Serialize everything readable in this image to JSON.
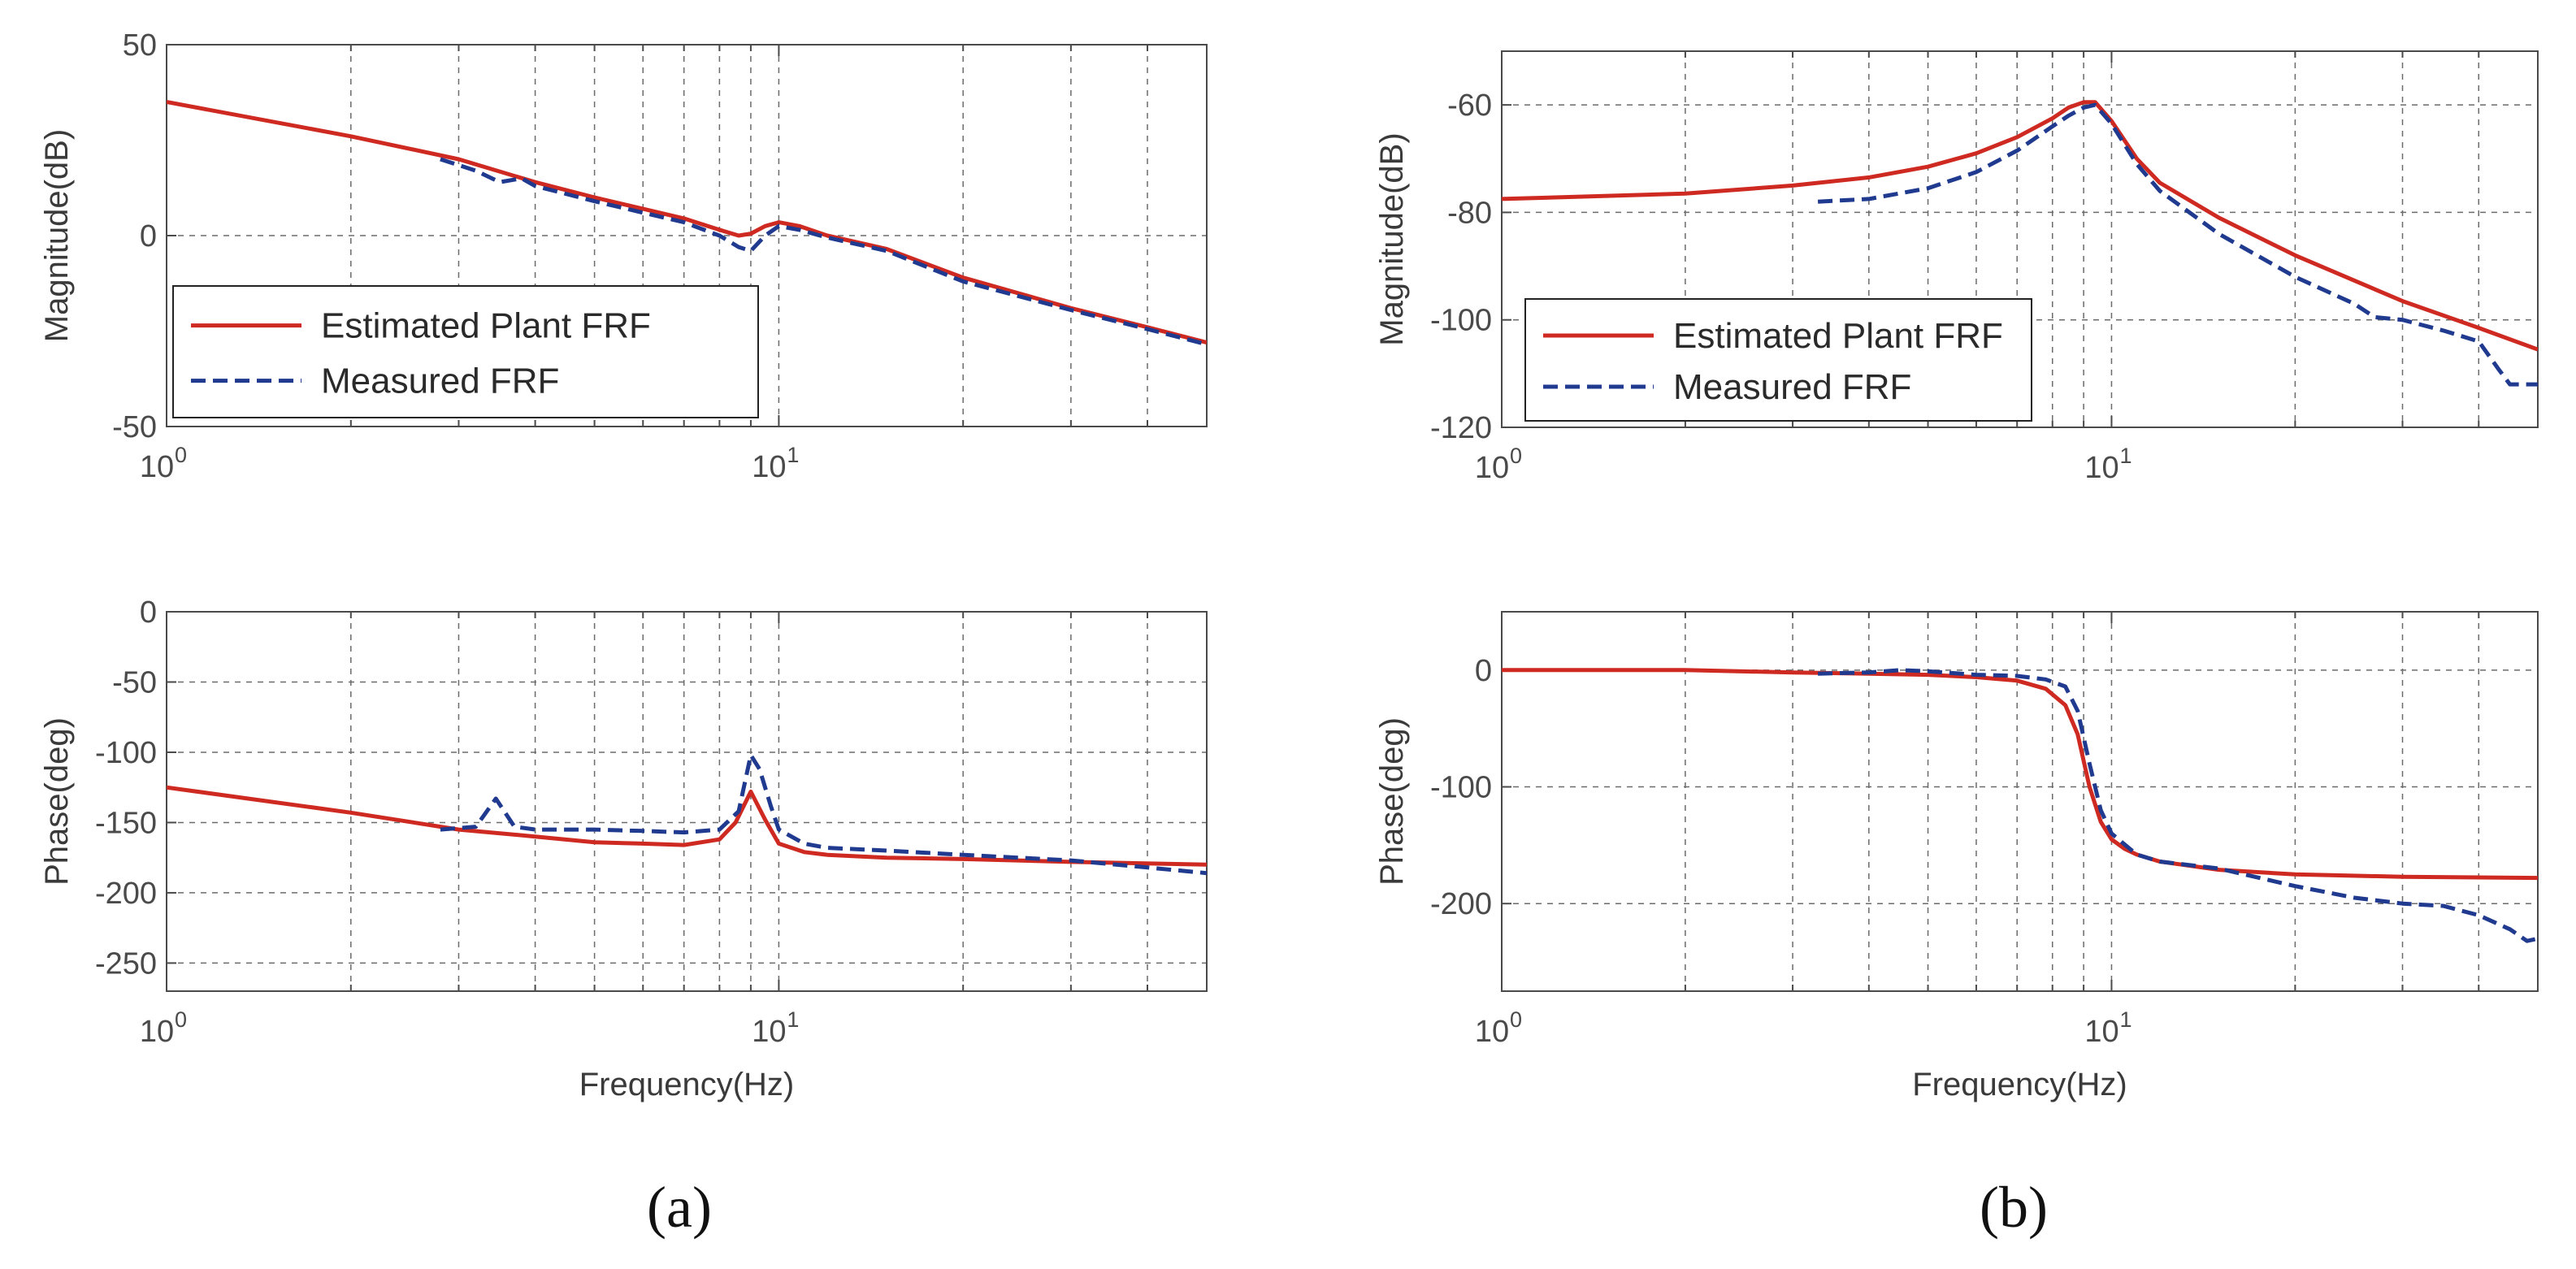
{
  "chart_data": [
    {
      "id": "a-magnitude",
      "type": "line",
      "xscale": "log",
      "xlim": [
        1,
        50
      ],
      "ylim": [
        -50,
        50
      ],
      "yticks": [
        -50,
        0,
        50
      ],
      "ylabel": "Magnitude(dB)",
      "xlabel": "",
      "grid": true,
      "legend": {
        "placement": "bottom-left",
        "entries": [
          "Estimated Plant FRF",
          "Measured FRF"
        ]
      },
      "series": [
        {
          "name": "Estimated Plant FRF",
          "style": "solid",
          "color": "#cf2a22",
          "x": [
            1,
            2,
            3,
            4,
            5,
            6,
            7,
            8,
            8.6,
            9,
            9.5,
            10,
            10.8,
            12,
            15,
            20,
            30,
            40,
            50
          ],
          "y": [
            35,
            26,
            20,
            14,
            10,
            7,
            4.5,
            1.5,
            0,
            0.5,
            2.5,
            3.5,
            2.5,
            0,
            -3.5,
            -11,
            -19,
            -24,
            -28
          ]
        },
        {
          "name": "Measured FRF",
          "style": "dashed",
          "color": "#1f3a8f",
          "x": [
            2.8,
            3.2,
            3.5,
            3.8,
            4,
            5,
            6,
            7,
            8,
            8.6,
            9,
            9.5,
            10,
            10.8,
            12,
            15,
            20,
            30,
            40,
            50
          ],
          "y": [
            20,
            17,
            14,
            15,
            13,
            9,
            6,
            3.5,
            0,
            -3,
            -4,
            0,
            2.5,
            1.5,
            -0.5,
            -4,
            -12,
            -19.5,
            -24.5,
            -28.5
          ]
        }
      ]
    },
    {
      "id": "a-phase",
      "type": "line",
      "xscale": "log",
      "xlim": [
        1,
        50
      ],
      "ylim": [
        -270,
        0
      ],
      "yticks": [
        -250,
        -200,
        -150,
        -100,
        -50,
        0
      ],
      "ylabel": "Phase(deg)",
      "xlabel": "Frequency(Hz)",
      "grid": true,
      "series": [
        {
          "name": "Estimated Plant FRF",
          "style": "solid",
          "color": "#cf2a22",
          "x": [
            1,
            2,
            3,
            4,
            5,
            6,
            7,
            8,
            8.5,
            9,
            9.5,
            10,
            11,
            12,
            15,
            20,
            30,
            50
          ],
          "y": [
            -125,
            -143,
            -155,
            -160,
            -164,
            -165,
            -166,
            -162,
            -150,
            -128,
            -148,
            -165,
            -171,
            -173,
            -175,
            -176,
            -178,
            -180
          ]
        },
        {
          "name": "Measured FRF",
          "style": "dashed",
          "color": "#1f3a8f",
          "x": [
            2.8,
            3.2,
            3.45,
            3.7,
            4,
            5,
            6,
            7,
            8,
            8.6,
            9,
            9.3,
            9.7,
            10,
            11,
            12,
            15,
            20,
            30,
            40,
            50
          ],
          "y": [
            -155,
            -153,
            -133,
            -153,
            -155,
            -155,
            -156,
            -157,
            -155,
            -142,
            -102,
            -112,
            -138,
            -155,
            -165,
            -168,
            -170,
            -173,
            -177,
            -182,
            -186
          ]
        }
      ]
    },
    {
      "id": "b-magnitude",
      "type": "line",
      "xscale": "log",
      "xlim": [
        1,
        50
      ],
      "ylim": [
        -120,
        -50
      ],
      "yticks": [
        -120,
        -100,
        -80,
        -60
      ],
      "ylabel": "Magnitude(dB)",
      "xlabel": "",
      "grid": true,
      "legend": {
        "placement": "bottom-left",
        "entries": [
          "Estimated Plant FRF",
          "Measured FRF"
        ]
      },
      "series": [
        {
          "name": "Estimated Plant FRF",
          "style": "solid",
          "color": "#cf2a22",
          "x": [
            1,
            2,
            3,
            4,
            5,
            6,
            7,
            8,
            8.5,
            9,
            9.4,
            10,
            11,
            12,
            15,
            20,
            30,
            40,
            50
          ],
          "y": [
            -77.5,
            -76.5,
            -75,
            -73.5,
            -71.5,
            -69,
            -66,
            -62.5,
            -60.5,
            -59.5,
            -59.5,
            -63,
            -70,
            -74.5,
            -81,
            -88,
            -96.5,
            -101.5,
            -105.5
          ]
        },
        {
          "name": "Measured FRF",
          "style": "dashed",
          "color": "#1f3a8f",
          "x": [
            3.3,
            4,
            5,
            6,
            7,
            8,
            8.5,
            9,
            9.4,
            10,
            11,
            12,
            15,
            20,
            25,
            27,
            30,
            35,
            40,
            43,
            45,
            50
          ],
          "y": [
            -78,
            -77.5,
            -75.5,
            -72.5,
            -68.5,
            -64,
            -62,
            -60.5,
            -60,
            -63.5,
            -71,
            -76,
            -84,
            -92,
            -97,
            -99.5,
            -100,
            -102,
            -104,
            -109,
            -112,
            -112
          ]
        }
      ]
    },
    {
      "id": "b-phase",
      "type": "line",
      "xscale": "log",
      "xlim": [
        1,
        50
      ],
      "ylim": [
        -275,
        50
      ],
      "yticks": [
        -200,
        -100,
        0
      ],
      "ylabel": "Phase(deg)",
      "xlabel": "Frequency(Hz)",
      "grid": true,
      "series": [
        {
          "name": "Estimated Plant FRF",
          "style": "solid",
          "color": "#cf2a22",
          "x": [
            1,
            2,
            3,
            4,
            5,
            6,
            7,
            7.8,
            8.4,
            8.8,
            9.2,
            9.6,
            10,
            10.5,
            11,
            12,
            15,
            20,
            30,
            50
          ],
          "y": [
            0,
            0,
            -2,
            -3,
            -4,
            -6,
            -9,
            -16,
            -30,
            -55,
            -100,
            -130,
            -145,
            -153,
            -158,
            -164,
            -171,
            -175,
            -177,
            -178
          ]
        },
        {
          "name": "Measured FRF",
          "style": "dashed",
          "color": "#1f3a8f",
          "x": [
            3.3,
            4,
            4.5,
            5,
            6,
            7,
            7.8,
            8.4,
            8.8,
            9.2,
            9.6,
            10,
            11,
            12,
            15,
            20,
            25,
            30,
            35,
            40,
            45,
            48,
            50
          ],
          "y": [
            -3,
            -2,
            0,
            -1,
            -4,
            -5,
            -8,
            -14,
            -35,
            -80,
            -120,
            -140,
            -158,
            -164,
            -170,
            -185,
            -195,
            -200,
            -202,
            -210,
            -222,
            -232,
            -230
          ]
        }
      ]
    }
  ],
  "xtick_labels": {
    "base": "10",
    "exp_zero": "0",
    "exp_one": "1"
  },
  "captions": {
    "a": "(a)",
    "b": "(b)"
  }
}
